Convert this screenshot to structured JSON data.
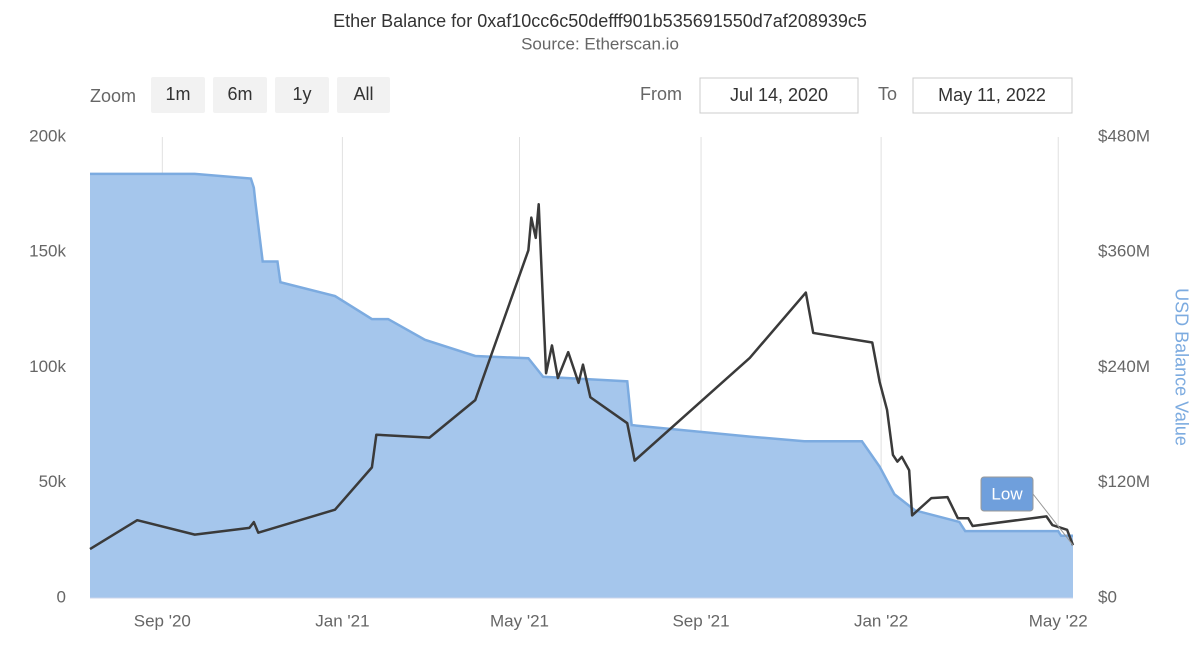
{
  "chart_data": {
    "type": "combo",
    "title": "Ether Balance for 0xaf10cc6c50defff901b535691550d7af208939c5",
    "subtitle": "Source: Etherscan.io",
    "y2_label": "USD Balance Value",
    "xlim": [
      "2020-07-14",
      "2022-05-11"
    ],
    "xticks": [
      {
        "value": "2020-09-01",
        "label": "Sep '20"
      },
      {
        "value": "2021-01-01",
        "label": "Jan '21"
      },
      {
        "value": "2021-05-01",
        "label": "May '21"
      },
      {
        "value": "2021-09-01",
        "label": "Sep '21"
      },
      {
        "value": "2022-01-01",
        "label": "Jan '22"
      },
      {
        "value": "2022-05-01",
        "label": "May '22"
      }
    ],
    "ylim": [
      0,
      200000
    ],
    "yticks": [
      0,
      {
        "value": 50000,
        "label": "50k"
      },
      {
        "value": 100000,
        "label": "100k"
      },
      {
        "value": 150000,
        "label": "150k"
      },
      {
        "value": 200000,
        "label": "200k"
      }
    ],
    "y2lim": [
      0,
      480000000
    ],
    "y2ticks": [
      {
        "value": 0,
        "label": "$0"
      },
      {
        "value": 120000000,
        "label": "$120M"
      },
      {
        "value": 240000000,
        "label": "$240M"
      },
      {
        "value": 360000000,
        "label": "$360M"
      },
      {
        "value": 480000000,
        "label": "$480M"
      }
    ],
    "grid": "x",
    "series": [
      {
        "type": "area",
        "color": "#7cabe0",
        "fill": "#a5c6ec",
        "x": [
          "2020-07-14",
          "2020-09-23",
          "2020-10-31",
          "2020-11-02",
          "2020-11-03",
          "2020-11-08",
          "2020-11-18",
          "2020-11-20",
          "2020-12-27",
          "2021-01-21",
          "2021-02-01",
          "2021-02-26",
          "2021-04-01",
          "2021-05-07",
          "2021-05-17",
          "2021-07-13",
          "2021-07-16",
          "2021-10-04",
          "2021-11-10",
          "2021-12-19",
          "2021-12-31",
          "2022-01-10",
          "2022-01-24",
          "2022-02-23",
          "2022-02-27",
          "2022-05-01",
          "2022-05-03",
          "2022-05-11"
        ],
        "values": [
          184000,
          184000,
          182000,
          178000,
          172000,
          146000,
          146000,
          137000,
          131000,
          121000,
          121000,
          112000,
          105000,
          104000,
          96000,
          94000,
          75000,
          70000,
          68000,
          68000,
          57000,
          45000,
          38000,
          33000,
          29000,
          29000,
          27000,
          27000
        ]
      },
      {
        "type": "line",
        "axis": "y2",
        "color": "#3a3a3a",
        "x": [
          "2020-07-14",
          "2020-08-15",
          "2020-09-23",
          "2020-10-30",
          "2020-11-02",
          "2020-11-05",
          "2020-12-27",
          "2021-01-21",
          "2021-01-24",
          "2021-03-01",
          "2021-04-01",
          "2021-05-07",
          "2021-05-09",
          "2021-05-12",
          "2021-05-14",
          "2021-05-19",
          "2021-05-23",
          "2021-05-27",
          "2021-06-03",
          "2021-06-10",
          "2021-06-13",
          "2021-06-18",
          "2021-07-13",
          "2021-07-18",
          "2021-10-04",
          "2021-11-11",
          "2021-11-16",
          "2021-12-26",
          "2021-12-31",
          "2022-01-05",
          "2022-01-09",
          "2022-01-12",
          "2022-01-15",
          "2022-01-20",
          "2022-01-22",
          "2022-02-04",
          "2022-02-15",
          "2022-02-22",
          "2022-03-01",
          "2022-03-04",
          "2022-04-23",
          "2022-04-27",
          "2022-05-07",
          "2022-05-11"
        ],
        "values": [
          51000000,
          81000000,
          66000000,
          73000000,
          79000000,
          68000000,
          92000000,
          136000000,
          170000000,
          167000000,
          206000000,
          362000000,
          396000000,
          375000000,
          410000000,
          234000000,
          263000000,
          229000000,
          256000000,
          224000000,
          243000000,
          209000000,
          182000000,
          143000000,
          250000000,
          318000000,
          276000000,
          266000000,
          225000000,
          196000000,
          149000000,
          142000000,
          147000000,
          133000000,
          86000000,
          104000000,
          105000000,
          83000000,
          83000000,
          75000000,
          85000000,
          76000000,
          71000000,
          55000000
        ]
      }
    ],
    "annotation": "Low"
  },
  "range_selector": {
    "label": "Zoom",
    "buttons": [
      "1m",
      "6m",
      "1y",
      "All"
    ],
    "from_label": "From",
    "from": "Jul 14, 2020",
    "to_label": "To",
    "to": "May 11, 2022"
  }
}
